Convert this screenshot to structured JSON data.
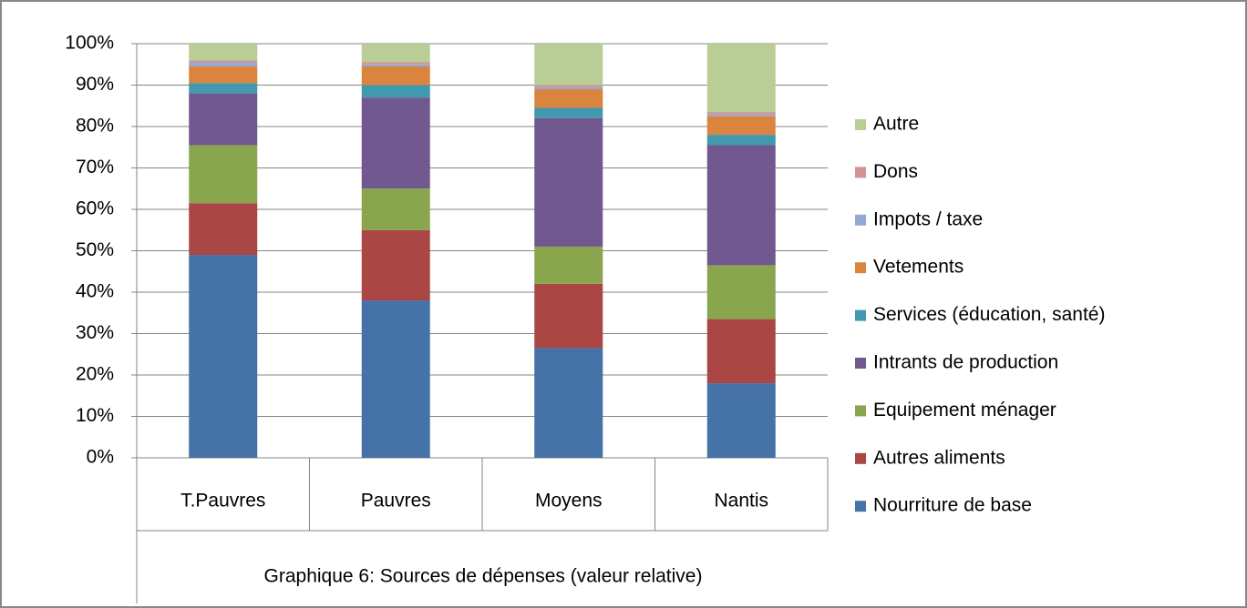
{
  "chart_data": {
    "type": "stacked_bar",
    "title": "Graphique 6: Sources de dépenses (valeur relative)",
    "categories": [
      "T.Pauvres",
      "Pauvres",
      "Moyens",
      "Nantis"
    ],
    "series": [
      {
        "name": "Nourriture de base",
        "color": "#4572a7",
        "values": [
          49,
          38,
          26.5,
          18
        ]
      },
      {
        "name": "Autres aliments",
        "color": "#aa4643",
        "values": [
          12.5,
          17,
          15.5,
          15.5
        ]
      },
      {
        "name": "Equipement ménager",
        "color": "#89a54e",
        "values": [
          14,
          10,
          9,
          13
        ]
      },
      {
        "name": "Intrants de production",
        "color": "#71588f",
        "values": [
          12.5,
          22,
          31,
          29
        ]
      },
      {
        "name": "Services (éducation, santé)",
        "color": "#4198af",
        "values": [
          2.5,
          3,
          2.5,
          2.5
        ]
      },
      {
        "name": "Vetements",
        "color": "#db843d",
        "values": [
          4,
          4.5,
          4.5,
          4.5
        ]
      },
      {
        "name": "Impots / taxe",
        "color": "#93a9cf",
        "values": [
          1,
          0.5,
          0.5,
          0.5
        ]
      },
      {
        "name": "Dons",
        "color": "#d19392",
        "values": [
          0.5,
          0.5,
          0.5,
          0.5
        ]
      },
      {
        "name": "Autre",
        "color": "#b9cd96",
        "values": [
          4,
          4.5,
          10,
          16.5
        ]
      }
    ],
    "ylim": [
      0,
      100
    ],
    "yticks": [
      {
        "value": 0,
        "label": "0%"
      },
      {
        "value": 10,
        "label": "10%"
      },
      {
        "value": 20,
        "label": "20%"
      },
      {
        "value": 30,
        "label": "30%"
      },
      {
        "value": 40,
        "label": "40%"
      },
      {
        "value": 50,
        "label": "50%"
      },
      {
        "value": 60,
        "label": "60%"
      },
      {
        "value": 70,
        "label": "70%"
      },
      {
        "value": 80,
        "label": "80%"
      },
      {
        "value": 90,
        "label": "90%"
      },
      {
        "value": 100,
        "label": "100%"
      }
    ],
    "grid": true,
    "legend": "right"
  }
}
